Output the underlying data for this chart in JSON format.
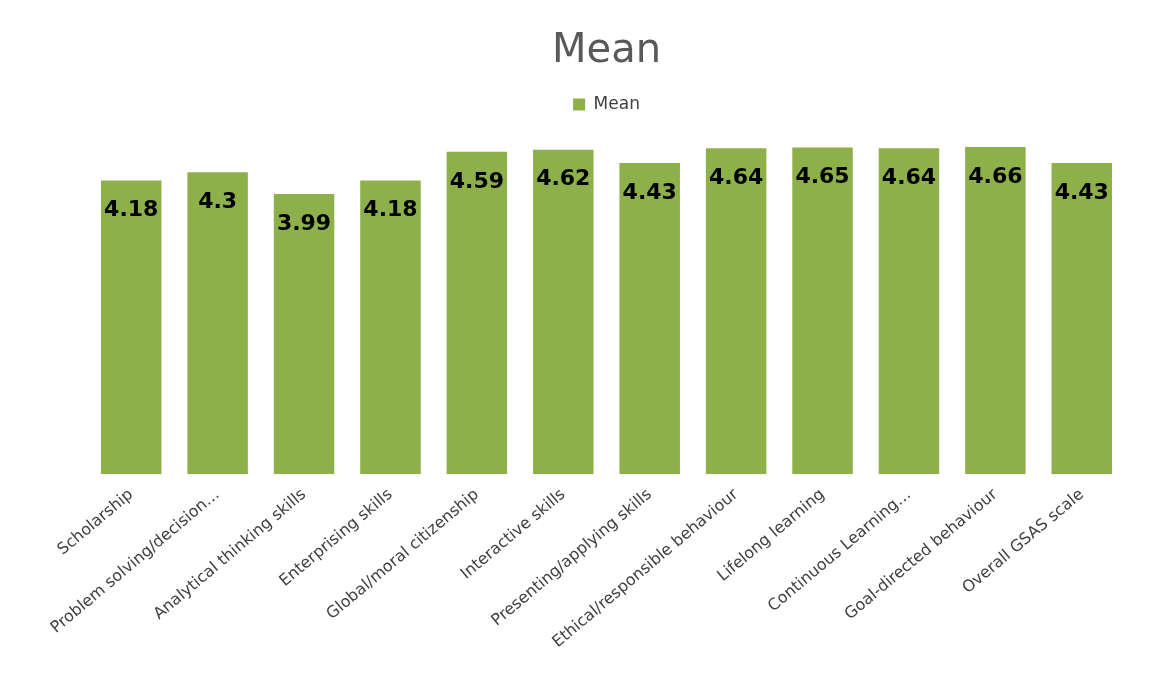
{
  "chart_data": {
    "type": "bar",
    "title": "Mean",
    "categories": [
      "Scholarship",
      "Problem solving/decision…",
      "Analytical thinking skills",
      "Enterprising skills",
      "Global/moral citizenship",
      "Interactive skills",
      "Presenting/applying skills",
      "Ethical/responsible behaviour",
      "Lifelong learning",
      "Continuous Learning…",
      "Goal-directed behaviour",
      "Overall GSAS scale"
    ],
    "series": [
      {
        "name": "Mean",
        "color": "#8db04a",
        "values": [
          4.18,
          4.3,
          3.99,
          4.18,
          4.59,
          4.62,
          4.43,
          4.64,
          4.65,
          4.64,
          4.66,
          4.43
        ]
      }
    ],
    "data_labels": true,
    "legend": "top",
    "grid": false
  }
}
